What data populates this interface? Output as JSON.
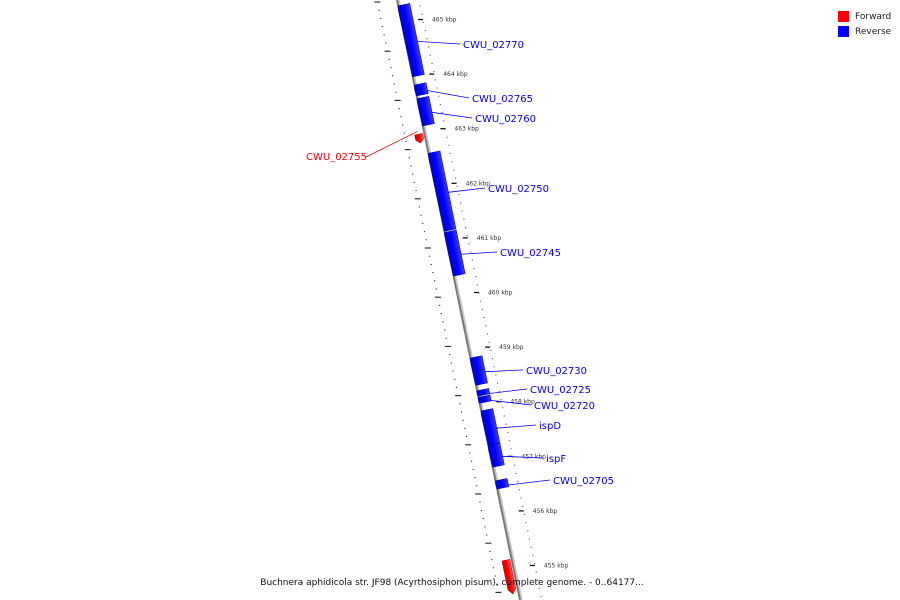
{
  "legend": {
    "forward_label": "Forward",
    "reverse_label": "Reverse",
    "forward_color": "#ff0000",
    "reverse_color": "#0000ff"
  },
  "caption": "Buchnera aphidicola str. JF98 (Acyrthosiphon pisum), complete genome. - 0..64177...",
  "ruler": {
    "ticks": [
      {
        "kbp": 465,
        "label": "465 kbp"
      },
      {
        "kbp": 464,
        "label": "464 kbp"
      },
      {
        "kbp": 463,
        "label": "463 kbp"
      },
      {
        "kbp": 462,
        "label": "462 kbp"
      },
      {
        "kbp": 461,
        "label": "461 kbp"
      },
      {
        "kbp": 460,
        "label": "460 kbp"
      },
      {
        "kbp": 459,
        "label": "459 kbp"
      },
      {
        "kbp": 458,
        "label": "458 kbp"
      },
      {
        "kbp": 457,
        "label": "457 kbp"
      },
      {
        "kbp": 456,
        "label": "456 kbp"
      },
      {
        "kbp": 455,
        "label": "455 kbp"
      }
    ]
  },
  "genes": [
    {
      "name": "CWU_02770",
      "strand": "reverse",
      "start_kbp": 463.95,
      "end_kbp": 465.25
    },
    {
      "name": "CWU_02765",
      "strand": "reverse",
      "start_kbp": 463.6,
      "end_kbp": 463.8
    },
    {
      "name": "CWU_02760",
      "strand": "reverse",
      "start_kbp": 463.05,
      "end_kbp": 463.55
    },
    {
      "name": "CWU_02755",
      "strand": "forward",
      "start_kbp": 462.76,
      "end_kbp": 462.92
    },
    {
      "name": "CWU_02750",
      "strand": "reverse",
      "start_kbp": 461.12,
      "end_kbp": 462.55
    },
    {
      "name": "CWU_02745",
      "strand": "reverse",
      "start_kbp": 460.3,
      "end_kbp": 461.1
    },
    {
      "name": "CWU_02730",
      "strand": "reverse",
      "start_kbp": 458.3,
      "end_kbp": 458.8
    },
    {
      "name": "CWU_02725",
      "strand": "reverse",
      "start_kbp": 458.1,
      "end_kbp": 458.2
    },
    {
      "name": "CWU_02720",
      "strand": "reverse",
      "start_kbp": 457.97,
      "end_kbp": 458.08
    },
    {
      "name": "ispD",
      "strand": "reverse",
      "start_kbp": 457.2,
      "end_kbp": 457.83
    },
    {
      "name": "ispF",
      "strand": "reverse",
      "start_kbp": 456.8,
      "end_kbp": 457.2
    },
    {
      "name": "CWU_02705",
      "strand": "reverse",
      "start_kbp": 456.4,
      "end_kbp": 456.55
    },
    {
      "name": "",
      "strand": "forward",
      "start_kbp": 454.5,
      "end_kbp": 455.12
    }
  ]
}
